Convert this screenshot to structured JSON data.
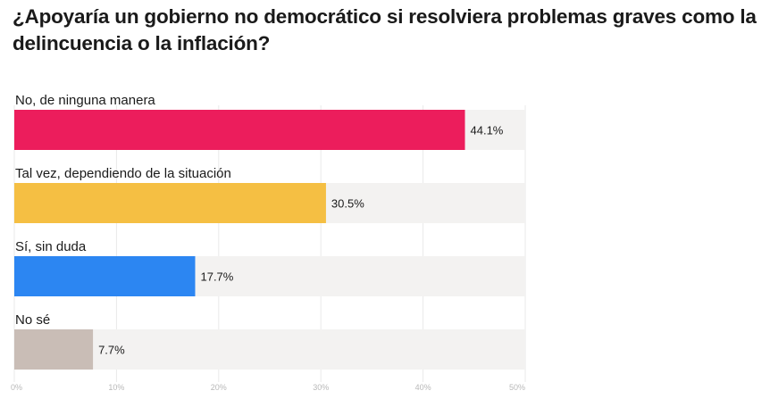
{
  "chart_data": {
    "type": "bar",
    "orientation": "horizontal",
    "title": "¿Apoyaría un gobierno no democrático si resolviera problemas graves como la delincuencia o la inflación?",
    "categories": [
      "No, de ninguna manera",
      "Tal vez, dependiendo de la situación",
      "Sí, sin duda",
      "No sé"
    ],
    "values": [
      44.1,
      30.5,
      17.7,
      7.7
    ],
    "value_labels": [
      "44.1%",
      "30.5%",
      "17.7%",
      "7.7%"
    ],
    "colors": [
      "#ec1d5c",
      "#f5bf43",
      "#2c86f2",
      "#c9bdb6"
    ],
    "track_color": "#f3f2f1",
    "xlim": [
      0,
      50
    ],
    "xticks": [
      0,
      10,
      20,
      30,
      40,
      50
    ],
    "xtick_labels": [
      "0%",
      "10%",
      "20%",
      "30%",
      "40%",
      "50%"
    ],
    "grid": true,
    "legend": "none"
  }
}
